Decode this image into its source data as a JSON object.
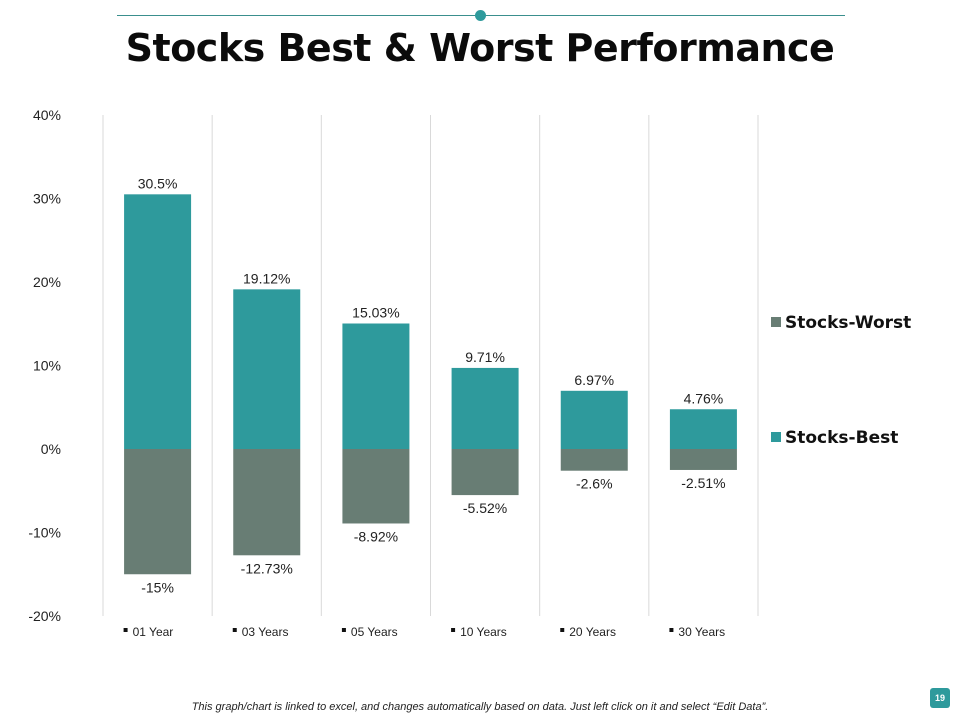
{
  "slide": {
    "title": "Stocks Best & Worst Performance",
    "footnote": "This graph/chart is linked to excel, and changes automatically based on data. Just left click on it and select “Edit Data”.",
    "page_number": "19"
  },
  "colors": {
    "best": "#2e9a9c",
    "worst": "#687d74",
    "accent": "#2e9a9c"
  },
  "chart_data": {
    "type": "bar",
    "stacked": true,
    "title": "",
    "xlabel": "",
    "ylabel": "",
    "ylim": [
      -20,
      40
    ],
    "yticks": [
      40,
      30,
      20,
      10,
      0,
      -10,
      -20
    ],
    "ytick_labels": [
      "40%",
      "30%",
      "20%",
      "10%",
      "0%",
      "-10%",
      "-20%"
    ],
    "grid": "vertical",
    "legend_position": "right",
    "categories": [
      "01 Year",
      "03 Years",
      "05 Years",
      "10 Years",
      "20 Years",
      "30 Years"
    ],
    "series": [
      {
        "name": "Stocks-Best",
        "values": [
          30.5,
          19.12,
          15.03,
          9.71,
          6.97,
          4.76
        ],
        "labels": [
          "30.5%",
          "19.12%",
          "15.03%",
          "9.71%",
          "6.97%",
          "4.76%"
        ]
      },
      {
        "name": "Stocks-Worst",
        "values": [
          -15,
          -12.73,
          -8.92,
          -5.52,
          -2.6,
          -2.51
        ],
        "labels": [
          "-15%",
          "-12.73%",
          "-8.92%",
          "-5.52%",
          "-2.6%",
          "-2.51%"
        ]
      }
    ],
    "legend_order": [
      "Stocks-Worst",
      "Stocks-Best"
    ]
  }
}
